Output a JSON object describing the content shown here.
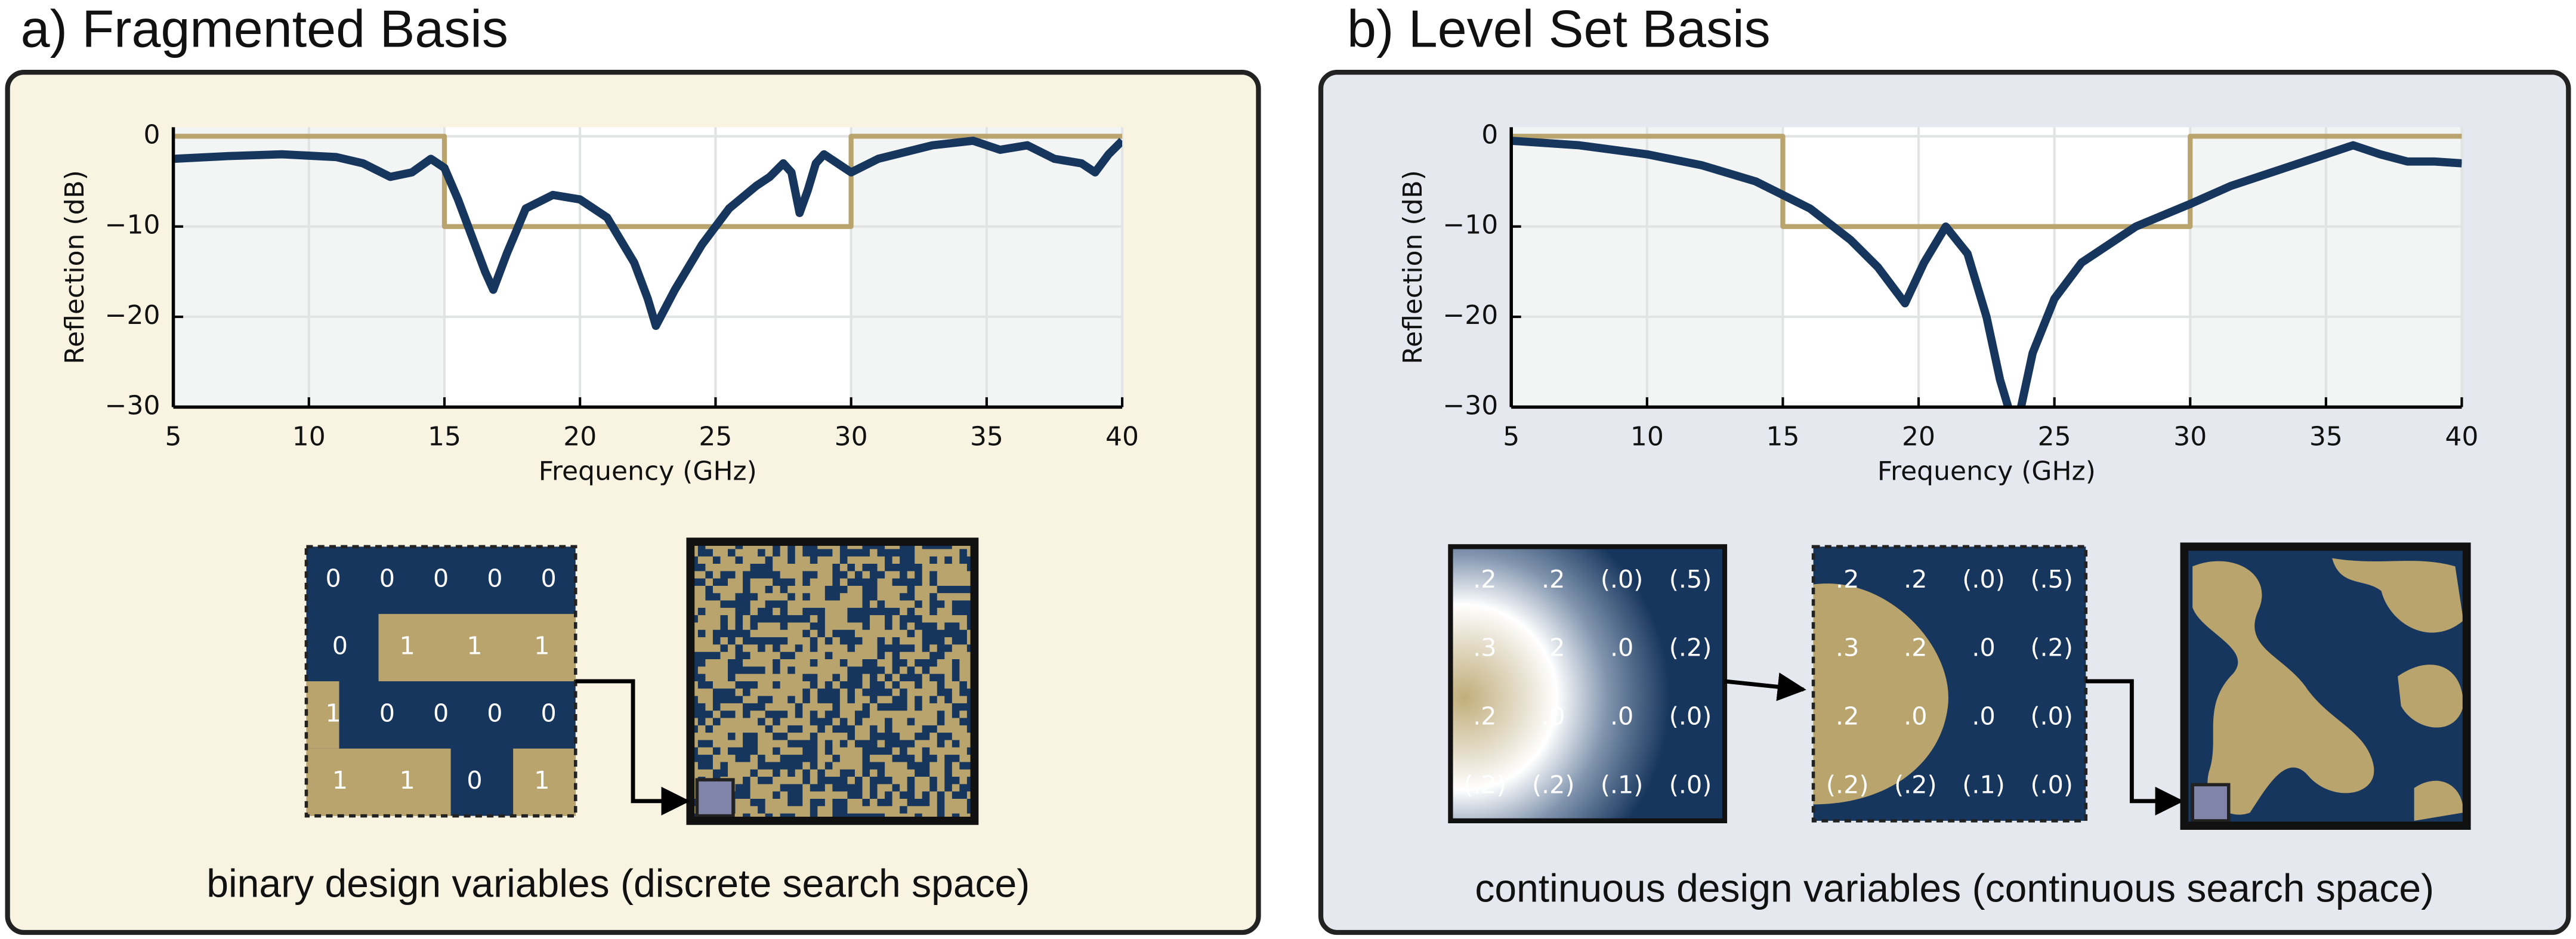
{
  "panels": [
    {
      "title": "a) Fragmented Basis",
      "caption": "binary design variables (discrete search space)",
      "grid_labels": [
        [
          "0",
          "0",
          "0",
          "0",
          "0"
        ],
        [
          "0",
          "1",
          "1",
          "1"
        ],
        [
          "1",
          "0",
          "0",
          "0",
          "0"
        ],
        [
          "1",
          "1",
          "0",
          "1"
        ]
      ]
    },
    {
      "title": "b) Level Set Basis",
      "caption": "continuous design variables (continuous search space)",
      "level_set_labels": [
        [
          ".2",
          ".2",
          "(.0)",
          "(.5)"
        ],
        [
          ".3",
          ".2",
          ".0",
          "(.2)"
        ],
        [
          ".2",
          ".0",
          ".0",
          "(.0)"
        ],
        [
          "(.2)",
          "(.2)",
          "(.1)",
          "(.0)"
        ]
      ],
      "threshold_labels": [
        [
          ".2",
          ".2",
          "(.0)",
          "(.5)"
        ],
        [
          ".3",
          ".2",
          ".0",
          "(.2)"
        ],
        [
          ".2",
          ".0",
          ".0",
          "(.0)"
        ],
        [
          "(.2)",
          "(.2)",
          "(.1)",
          "(.0)"
        ]
      ]
    }
  ],
  "chart_data": [
    {
      "type": "line",
      "xlabel": "Frequency (GHz)",
      "ylabel": "Reflection (dB)",
      "xlim": [
        5,
        40
      ],
      "ylim": [
        -30,
        1
      ],
      "xticks": [
        5,
        10,
        15,
        20,
        25,
        30,
        35,
        40
      ],
      "yticks": [
        {
          "value": -30,
          "label": "−30"
        },
        {
          "value": -20,
          "label": "−20"
        },
        {
          "value": -10,
          "label": "−10"
        },
        0
      ],
      "grid": true,
      "series": [
        {
          "color": "#b8a46c",
          "x": [
            5,
            15,
            15,
            30,
            30,
            40
          ],
          "values": [
            0,
            0,
            -10,
            -10,
            0,
            0
          ]
        },
        {
          "color": "#17365d",
          "x": [
            5,
            7,
            9,
            11,
            12,
            13,
            13.8,
            14.5,
            15,
            15.5,
            16,
            16.5,
            16.8,
            17.3,
            18,
            19,
            20,
            21,
            22,
            22.5,
            22.8,
            23.5,
            24.5,
            25.5,
            26.5,
            27,
            27.5,
            27.8,
            28.1,
            28.4,
            28.7,
            29,
            30,
            31,
            33,
            34.5,
            35.5,
            36.5,
            37.5,
            38.5,
            39,
            39.5,
            40
          ],
          "values": [
            -2.5,
            -2.2,
            -2,
            -2.3,
            -3,
            -4.5,
            -4,
            -2.5,
            -3.5,
            -7,
            -11,
            -15,
            -17,
            -13,
            -8,
            -6.5,
            -7,
            -9,
            -14,
            -18,
            -21,
            -17,
            -12,
            -8,
            -5.5,
            -4.5,
            -3,
            -4,
            -8.5,
            -6,
            -3,
            -2,
            -4,
            -2.5,
            -1,
            -0.5,
            -1.5,
            -1,
            -2.5,
            -3,
            -4,
            -2,
            -0.5
          ]
        }
      ]
    },
    {
      "type": "line",
      "xlabel": "Frequency (GHz)",
      "ylabel": "Reflection (dB)",
      "xlim": [
        5,
        40
      ],
      "ylim": [
        -30,
        1
      ],
      "xticks": [
        5,
        10,
        15,
        20,
        25,
        30,
        35,
        40
      ],
      "yticks": [
        {
          "value": -30,
          "label": "−30"
        },
        {
          "value": -20,
          "label": "−20"
        },
        {
          "value": -10,
          "label": "−10"
        },
        0
      ],
      "grid": true,
      "series": [
        {
          "color": "#b8a46c",
          "x": [
            5,
            15,
            15,
            30,
            30,
            40
          ],
          "values": [
            0,
            0,
            -10,
            -10,
            0,
            0
          ]
        },
        {
          "color": "#17365d",
          "x": [
            5,
            7.5,
            10,
            12,
            14,
            16,
            17.5,
            18.5,
            19.5,
            20.2,
            21,
            21.8,
            22.5,
            23,
            23.4,
            23.7,
            24.2,
            25,
            26,
            28,
            30,
            31.5,
            33.5,
            35,
            36,
            37,
            38,
            39,
            40
          ],
          "values": [
            -0.5,
            -1,
            -2,
            -3.2,
            -5,
            -8,
            -11.5,
            -14.5,
            -18.5,
            -14,
            -10,
            -13,
            -20,
            -27,
            -31,
            -31,
            -24,
            -18,
            -14,
            -10,
            -7.5,
            -5.5,
            -3.5,
            -2,
            -1,
            -2,
            -2.8,
            -2.8,
            -3
          ]
        }
      ]
    }
  ]
}
